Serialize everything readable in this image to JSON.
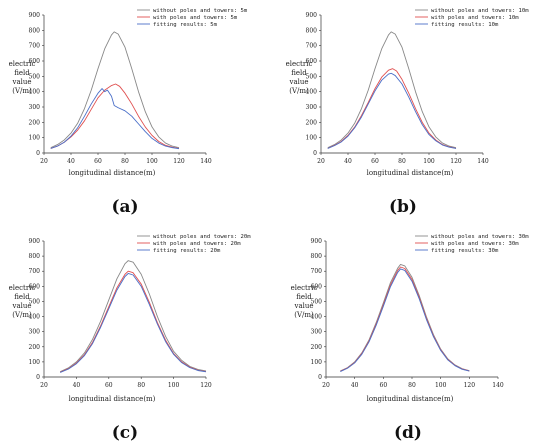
{
  "chart_data": [
    {
      "type": "line",
      "panel_label": "(a)",
      "xlabel": "longitudinal distance(m)",
      "ylabel": [
        "electric",
        "field",
        "value",
        "(V/m)"
      ],
      "xlim": [
        20,
        140
      ],
      "ylim": [
        0,
        900
      ],
      "xticks": [
        20,
        40,
        60,
        80,
        100,
        120,
        140
      ],
      "yticks": [
        0,
        100,
        200,
        300,
        400,
        500,
        600,
        700,
        800,
        900
      ],
      "legend_position": "top-right",
      "series": [
        {
          "name": "without poles and towers: 5m",
          "color": "#888888",
          "x": [
            25,
            30,
            35,
            40,
            45,
            50,
            55,
            60,
            65,
            70,
            72,
            75,
            80,
            85,
            90,
            95,
            100,
            105,
            110,
            115,
            120
          ],
          "y": [
            35,
            55,
            85,
            130,
            195,
            290,
            410,
            550,
            680,
            770,
            790,
            775,
            690,
            550,
            400,
            270,
            170,
            105,
            65,
            45,
            35
          ]
        },
        {
          "name": "with poles and towers: 5m",
          "color": "#e05050",
          "x": [
            25,
            30,
            35,
            40,
            45,
            50,
            55,
            60,
            65,
            70,
            73,
            76,
            80,
            85,
            90,
            95,
            100,
            105,
            110,
            115,
            120
          ],
          "y": [
            30,
            45,
            70,
            105,
            150,
            210,
            285,
            360,
            410,
            440,
            450,
            435,
            390,
            320,
            240,
            170,
            115,
            75,
            50,
            38,
            30
          ]
        },
        {
          "name": "fitting results: 5m",
          "color": "#4a6fc8",
          "x": [
            25,
            30,
            35,
            40,
            45,
            50,
            55,
            60,
            63,
            65,
            67,
            70,
            72,
            75,
            80,
            85,
            90,
            95,
            100,
            105,
            110,
            115,
            120
          ],
          "y": [
            30,
            45,
            70,
            110,
            165,
            240,
            320,
            390,
            420,
            400,
            410,
            370,
            310,
            295,
            275,
            240,
            190,
            140,
            95,
            65,
            45,
            35,
            28
          ]
        }
      ]
    },
    {
      "type": "line",
      "panel_label": "(b)",
      "xlabel": "longitudinal distance(m)",
      "ylabel": [
        "electric",
        "field",
        "value",
        "(V/m)"
      ],
      "xlim": [
        20,
        140
      ],
      "ylim": [
        0,
        900
      ],
      "xticks": [
        20,
        40,
        60,
        80,
        100,
        120,
        140
      ],
      "yticks": [
        0,
        100,
        200,
        300,
        400,
        500,
        600,
        700,
        800,
        900
      ],
      "legend_position": "top-right",
      "series": [
        {
          "name": "without poles and towers: 10m",
          "color": "#888888",
          "x": [
            25,
            30,
            35,
            40,
            45,
            50,
            55,
            60,
            65,
            70,
            72,
            75,
            80,
            85,
            90,
            95,
            100,
            105,
            110,
            115,
            120
          ],
          "y": [
            35,
            55,
            85,
            130,
            195,
            290,
            410,
            550,
            680,
            770,
            790,
            775,
            690,
            550,
            400,
            270,
            170,
            105,
            65,
            45,
            35
          ]
        },
        {
          "name": "with poles and towers: 10m",
          "color": "#e05050",
          "x": [
            25,
            30,
            35,
            40,
            45,
            50,
            55,
            60,
            65,
            70,
            73,
            76,
            80,
            85,
            90,
            95,
            100,
            105,
            110,
            115,
            120
          ],
          "y": [
            30,
            50,
            75,
            115,
            170,
            245,
            330,
            420,
            495,
            540,
            550,
            535,
            480,
            390,
            290,
            200,
            130,
            85,
            55,
            40,
            30
          ]
        },
        {
          "name": "fitting results: 10m",
          "color": "#4a6fc8",
          "x": [
            25,
            30,
            35,
            40,
            45,
            50,
            55,
            60,
            65,
            70,
            72,
            75,
            80,
            85,
            90,
            95,
            100,
            105,
            110,
            115,
            120
          ],
          "y": [
            30,
            48,
            72,
            110,
            165,
            235,
            320,
            405,
            475,
            515,
            520,
            505,
            450,
            365,
            270,
            185,
            120,
            80,
            52,
            38,
            30
          ]
        }
      ]
    },
    {
      "type": "line",
      "panel_label": "(c)",
      "xlabel": "longitudinal distance(m)",
      "ylabel": [
        "electric",
        "field",
        "value",
        "(V/m)"
      ],
      "xlim": [
        20,
        120
      ],
      "ylim": [
        0,
        900
      ],
      "xticks": [
        20,
        40,
        60,
        80,
        100,
        120
      ],
      "yticks": [
        0,
        100,
        200,
        300,
        400,
        500,
        600,
        700,
        800,
        900
      ],
      "legend_position": "top-right",
      "series": [
        {
          "name": "without poles and towers: 20m",
          "color": "#888888",
          "x": [
            30,
            35,
            40,
            45,
            50,
            55,
            60,
            65,
            70,
            72,
            75,
            80,
            85,
            90,
            95,
            100,
            105,
            110,
            115,
            120
          ],
          "y": [
            35,
            60,
            100,
            160,
            250,
            370,
            510,
            650,
            750,
            770,
            760,
            680,
            550,
            400,
            270,
            170,
            110,
            70,
            50,
            40
          ]
        },
        {
          "name": "with poles and towers: 20m",
          "color": "#e05050",
          "x": [
            30,
            35,
            40,
            45,
            50,
            55,
            60,
            65,
            70,
            72,
            75,
            80,
            85,
            90,
            95,
            100,
            105,
            110,
            115,
            120
          ],
          "y": [
            32,
            55,
            92,
            148,
            230,
            340,
            465,
            590,
            680,
            700,
            690,
            615,
            495,
            360,
            245,
            155,
            100,
            65,
            45,
            36
          ]
        },
        {
          "name": "fitting results: 20m",
          "color": "#4a6fc8",
          "x": [
            30,
            35,
            40,
            45,
            50,
            55,
            60,
            65,
            70,
            72,
            75,
            80,
            85,
            90,
            95,
            100,
            105,
            110,
            115,
            120
          ],
          "y": [
            30,
            52,
            88,
            142,
            222,
            330,
            452,
            575,
            665,
            685,
            675,
            600,
            480,
            350,
            235,
            150,
            95,
            62,
            43,
            34
          ]
        }
      ]
    },
    {
      "type": "line",
      "panel_label": "(d)",
      "xlabel": "longitudinal distance(m)",
      "ylabel": [
        "electric",
        "field",
        "value",
        "(V/m)"
      ],
      "xlim": [
        20,
        140
      ],
      "ylim": [
        0,
        900
      ],
      "xticks": [
        20,
        40,
        60,
        80,
        100,
        120,
        140
      ],
      "yticks": [
        0,
        100,
        200,
        300,
        400,
        500,
        600,
        700,
        800,
        900
      ],
      "legend_position": "top-right",
      "series": [
        {
          "name": "without poles and towers: 30m",
          "color": "#888888",
          "x": [
            30,
            35,
            40,
            45,
            50,
            55,
            60,
            65,
            70,
            72,
            75,
            80,
            85,
            90,
            95,
            100,
            105,
            110,
            115,
            120
          ],
          "y": [
            40,
            62,
            100,
            160,
            245,
            360,
            490,
            625,
            720,
            745,
            735,
            660,
            540,
            400,
            280,
            185,
            120,
            80,
            55,
            42
          ]
        },
        {
          "name": "with poles and towers: 30m",
          "color": "#e05050",
          "x": [
            30,
            35,
            40,
            45,
            50,
            55,
            60,
            65,
            70,
            72,
            75,
            80,
            85,
            90,
            95,
            100,
            105,
            110,
            115,
            120
          ],
          "y": [
            38,
            60,
            96,
            155,
            238,
            350,
            478,
            610,
            705,
            728,
            718,
            645,
            528,
            390,
            272,
            180,
            116,
            77,
            53,
            40
          ]
        },
        {
          "name": "fitting results: 30m",
          "color": "#4a6fc8",
          "x": [
            30,
            35,
            40,
            45,
            50,
            55,
            60,
            65,
            70,
            72,
            75,
            80,
            85,
            90,
            95,
            100,
            105,
            110,
            115,
            120
          ],
          "y": [
            36,
            58,
            93,
            150,
            232,
            342,
            468,
            598,
            692,
            715,
            705,
            633,
            518,
            382,
            266,
            176,
            113,
            75,
            51,
            39
          ]
        }
      ]
    }
  ]
}
